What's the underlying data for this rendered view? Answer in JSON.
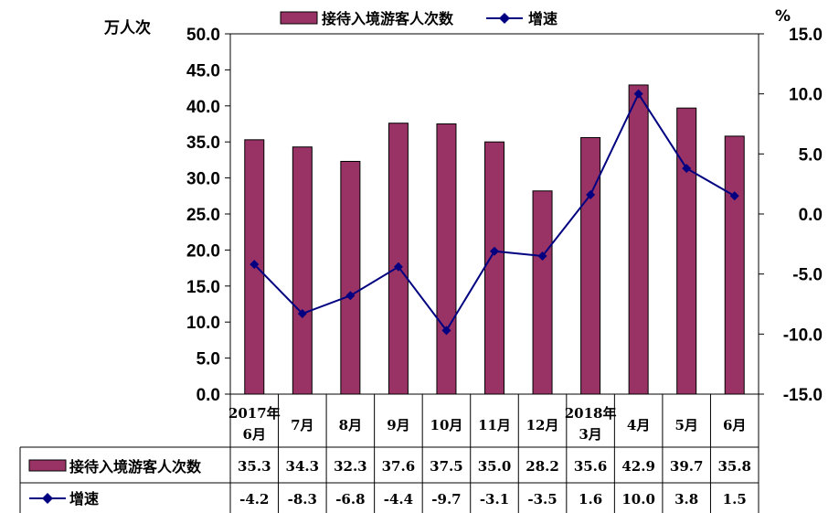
{
  "legend": {
    "bar_label": "接待入境游客人次数",
    "line_label": "增速"
  },
  "units": {
    "left": "万人次",
    "right": "%"
  },
  "colors": {
    "bar": "#993366",
    "line": "#000080",
    "grid": "#000000"
  },
  "chart_data": {
    "type": "bar",
    "categories": [
      [
        "2017年",
        "6月"
      ],
      [
        "7月"
      ],
      [
        "8月"
      ],
      [
        "9月"
      ],
      [
        "10月"
      ],
      [
        "11月"
      ],
      [
        "12月"
      ],
      [
        "2018年",
        "3月"
      ],
      [
        "4月"
      ],
      [
        "5月"
      ],
      [
        "6月"
      ]
    ],
    "series": [
      {
        "name": "接待入境游客人次数",
        "type": "bar",
        "axis": "left",
        "values": [
          35.3,
          34.3,
          32.3,
          37.6,
          37.5,
          35.0,
          28.2,
          35.6,
          42.9,
          39.7,
          35.8
        ],
        "labels": [
          "35.3",
          "34.3",
          "32.3",
          "37.6",
          "37.5",
          "35.0",
          "28.2",
          "35.6",
          "42.9",
          "39.7",
          "35.8"
        ]
      },
      {
        "name": "增速",
        "type": "line",
        "axis": "right",
        "values": [
          -4.2,
          -8.3,
          -6.8,
          -4.4,
          -9.7,
          -3.1,
          -3.5,
          1.6,
          10.0,
          3.8,
          1.5
        ],
        "labels": [
          "-4.2",
          "-8.3",
          "-6.8",
          "-4.4",
          "-9.7",
          "-3.1",
          "-3.5",
          "1.6",
          "10.0",
          "3.8",
          "1.5"
        ]
      }
    ],
    "y_left": {
      "range": [
        0,
        50
      ],
      "ticks": [
        "0.0",
        "5.0",
        "10.0",
        "15.0",
        "20.0",
        "25.0",
        "30.0",
        "35.0",
        "40.0",
        "45.0",
        "50.0"
      ]
    },
    "y_right": {
      "range": [
        -15,
        15
      ],
      "ticks": [
        "-15.0",
        "-10.0",
        "-5.0",
        "0.0",
        "5.0",
        "10.0",
        "15.0"
      ]
    },
    "legend_position": "top",
    "data_table": true,
    "grid": false
  }
}
